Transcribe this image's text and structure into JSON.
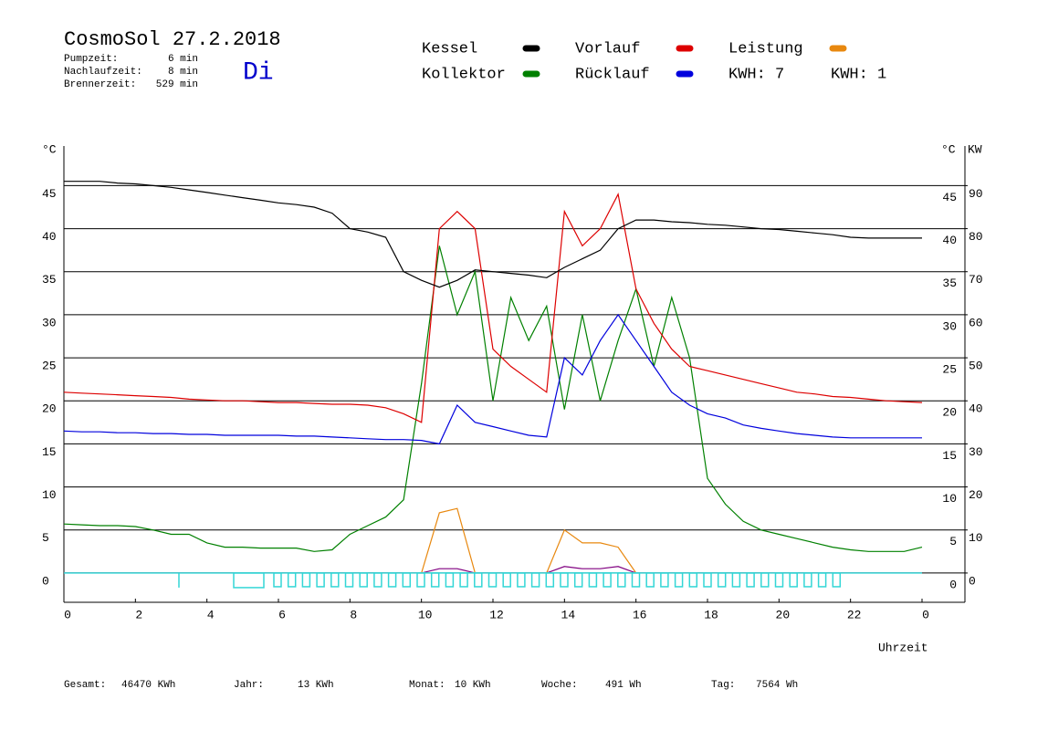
{
  "header": {
    "day": "Di",
    "times": [
      {
        "label": "Pumpzeit:",
        "value": "6 min"
      },
      {
        "label": "Nachlaufzeit:",
        "value": "8 min"
      },
      {
        "label": "Brennerzeit:",
        "value": "529 min"
      }
    ]
  },
  "footer": [
    {
      "label": "Gesamt:",
      "value": "46470 KWh"
    },
    {
      "label": "Jahr:",
      "value": "13 KWh"
    },
    {
      "label": "Monat:",
      "value": "10 KWh"
    },
    {
      "label": "Woche:",
      "value": "491 Wh"
    },
    {
      "label": "Tag:",
      "value": "7564 Wh"
    }
  ],
  "chart_data": {
    "type": "line",
    "title": "CosmoSol 27.2.2018",
    "xlabel": "Uhrzeit",
    "ylabel": "°C",
    "y2label": "KW",
    "annotations": [
      {
        "text": "KWH: 7",
        "series": 4
      },
      {
        "text": "KWH: 1",
        "series": 5
      }
    ],
    "x": [
      0,
      0.5,
      1,
      1.5,
      2,
      2.5,
      3,
      3.5,
      4,
      4.5,
      5,
      5.5,
      6,
      6.5,
      7,
      7.5,
      8,
      8.5,
      9,
      9.5,
      10,
      10.5,
      11,
      11.5,
      12,
      12.5,
      13,
      13.5,
      14,
      14.5,
      15,
      15.5,
      16,
      16.5,
      17,
      17.5,
      18,
      18.5,
      19,
      19.5,
      20,
      20.5,
      21,
      21.5,
      22,
      22.5,
      23,
      23.5,
      24
    ],
    "xlim": [
      0,
      25.2
    ],
    "xticks": [
      0,
      2,
      4,
      6,
      8,
      10,
      12,
      14,
      16,
      18,
      20,
      22,
      {
        "value": 24,
        "label": "0"
      }
    ],
    "ylim": [
      -3.4,
      49.6
    ],
    "yticks": [
      0,
      5,
      10,
      15,
      20,
      25,
      30,
      35,
      40,
      45
    ],
    "y2lim": [
      -6.8,
      99.2
    ],
    "y2ticks": [
      0,
      10,
      20,
      30,
      40,
      50,
      60,
      70,
      80,
      90
    ],
    "grid": true,
    "series": [
      {
        "name": "Kessel",
        "color": "#000000",
        "values": [
          45.5,
          45.5,
          45.5,
          45.3,
          45.2,
          45.0,
          44.8,
          44.5,
          44.2,
          43.9,
          43.6,
          43.3,
          43.0,
          42.8,
          42.5,
          41.8,
          40.0,
          39.6,
          39.0,
          35.0,
          34.0,
          33.2,
          34.0,
          35.2,
          35.0,
          34.8,
          34.6,
          34.3,
          35.5,
          36.5,
          37.5,
          40.0,
          41.0,
          41.0,
          40.8,
          40.7,
          40.5,
          40.4,
          40.2,
          40.0,
          39.9,
          39.7,
          39.5,
          39.3,
          39.0,
          38.9,
          38.9,
          38.9,
          38.9
        ]
      },
      {
        "name": "Kollektor",
        "color": "#008000",
        "values": [
          5.7,
          5.6,
          5.5,
          5.5,
          5.4,
          5.0,
          4.5,
          4.5,
          3.5,
          3.0,
          3.0,
          2.9,
          2.9,
          2.9,
          2.5,
          2.7,
          4.5,
          5.5,
          6.5,
          8.5,
          22,
          38,
          30,
          35,
          20,
          32,
          27,
          31,
          19,
          30,
          20,
          27,
          33,
          24,
          32,
          25,
          11,
          8,
          6,
          5,
          4.5,
          4.0,
          3.5,
          3.0,
          2.7,
          2.5,
          2.5,
          2.5,
          3.0
        ]
      },
      {
        "name": "Vorlauf",
        "color": "#dd0000",
        "values": [
          21.0,
          20.9,
          20.8,
          20.7,
          20.6,
          20.5,
          20.4,
          20.2,
          20.1,
          20.0,
          20.0,
          19.9,
          19.8,
          19.8,
          19.7,
          19.6,
          19.6,
          19.5,
          19.2,
          18.5,
          17.5,
          40,
          42,
          40,
          26,
          24,
          22.5,
          21,
          42,
          38,
          40,
          44,
          33,
          29,
          26,
          24,
          23.5,
          23,
          22.5,
          22,
          21.5,
          21,
          20.8,
          20.5,
          20.4,
          20.2,
          20.0,
          19.9,
          19.8
        ]
      },
      {
        "name": "Rücklauf",
        "color": "#0000dd",
        "values": [
          16.5,
          16.4,
          16.4,
          16.3,
          16.3,
          16.2,
          16.2,
          16.1,
          16.1,
          16.0,
          16.0,
          16.0,
          16.0,
          15.9,
          15.9,
          15.8,
          15.7,
          15.6,
          15.5,
          15.5,
          15.4,
          15.0,
          19.5,
          17.5,
          17.0,
          16.5,
          16.0,
          15.8,
          25,
          23,
          27,
          30,
          27,
          24,
          21,
          19.5,
          18.5,
          18,
          17.2,
          16.8,
          16.5,
          16.2,
          16.0,
          15.8,
          15.7,
          15.7,
          15.7,
          15.7,
          15.7
        ]
      },
      {
        "name": "Leistung",
        "color": "#e8880f",
        "axis": "y2",
        "values": [
          0,
          0,
          0,
          0,
          0,
          0,
          0,
          0,
          0,
          0,
          0,
          0,
          0,
          0,
          0,
          0,
          0,
          0,
          0,
          0,
          0,
          14,
          15,
          0,
          0,
          0,
          0,
          0,
          10,
          7,
          7,
          6,
          0,
          0,
          0,
          0,
          0,
          0,
          0,
          0,
          0,
          0,
          0,
          0,
          0,
          0,
          0,
          0,
          0
        ]
      },
      {
        "color": "#800080",
        "axis": "y2",
        "values": [
          0,
          0,
          0,
          0,
          0,
          0,
          0,
          0,
          0,
          0,
          0,
          0,
          0,
          0,
          0,
          0,
          0,
          0,
          0,
          0,
          0,
          1,
          1,
          0,
          0,
          0,
          0,
          0,
          1.5,
          1,
          1,
          1.5,
          0,
          0,
          0,
          0,
          0,
          0,
          0,
          0,
          0,
          0,
          0,
          0,
          0,
          0,
          0,
          0,
          0
        ]
      }
    ]
  }
}
